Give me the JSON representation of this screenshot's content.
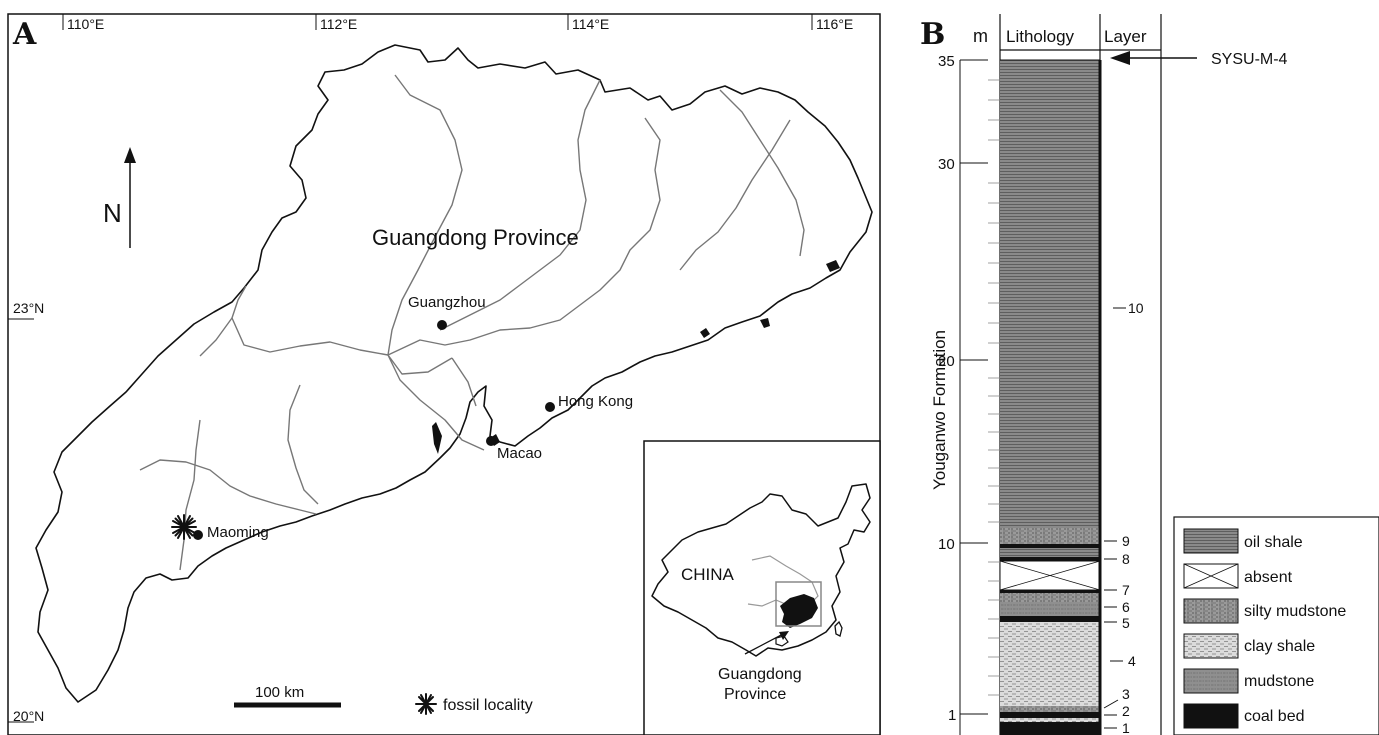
{
  "panel_a": {
    "letter": "A",
    "longitudes": [
      "110°E",
      "112°E",
      "114°E",
      "116°E"
    ],
    "latitudes": [
      "23°N",
      "20°N"
    ],
    "north": "N",
    "province_label": "Guangdong Province",
    "cities": {
      "guangzhou": "Guangzhou",
      "hong_kong": "Hong Kong",
      "macao": "Macao",
      "maoming": "Maoming"
    },
    "scale_bar": "100 km",
    "legend_fossil": "fossil locality",
    "inset": {
      "country": "CHINA",
      "province_line1": "Guangdong",
      "province_line2": "Province"
    }
  },
  "panel_b": {
    "letter": "B",
    "headers": {
      "unit": "m",
      "lithology": "Lithology",
      "layer": "Layer"
    },
    "depth_ticks": [
      "35",
      "30",
      "20",
      "10",
      "1"
    ],
    "formation": "Youganwo Formation",
    "sample": "SYSU-M-4",
    "layers": [
      "10",
      "9",
      "8",
      "7",
      "6",
      "5",
      "4",
      "3",
      "2",
      "1"
    ],
    "legend": {
      "oil_shale": "oil shale",
      "absent": "absent",
      "silty_mudstone": "silty mudstone",
      "clay_shale": "clay shale",
      "mudstone": "mudstone",
      "coal_bed": "coal bed"
    }
  }
}
